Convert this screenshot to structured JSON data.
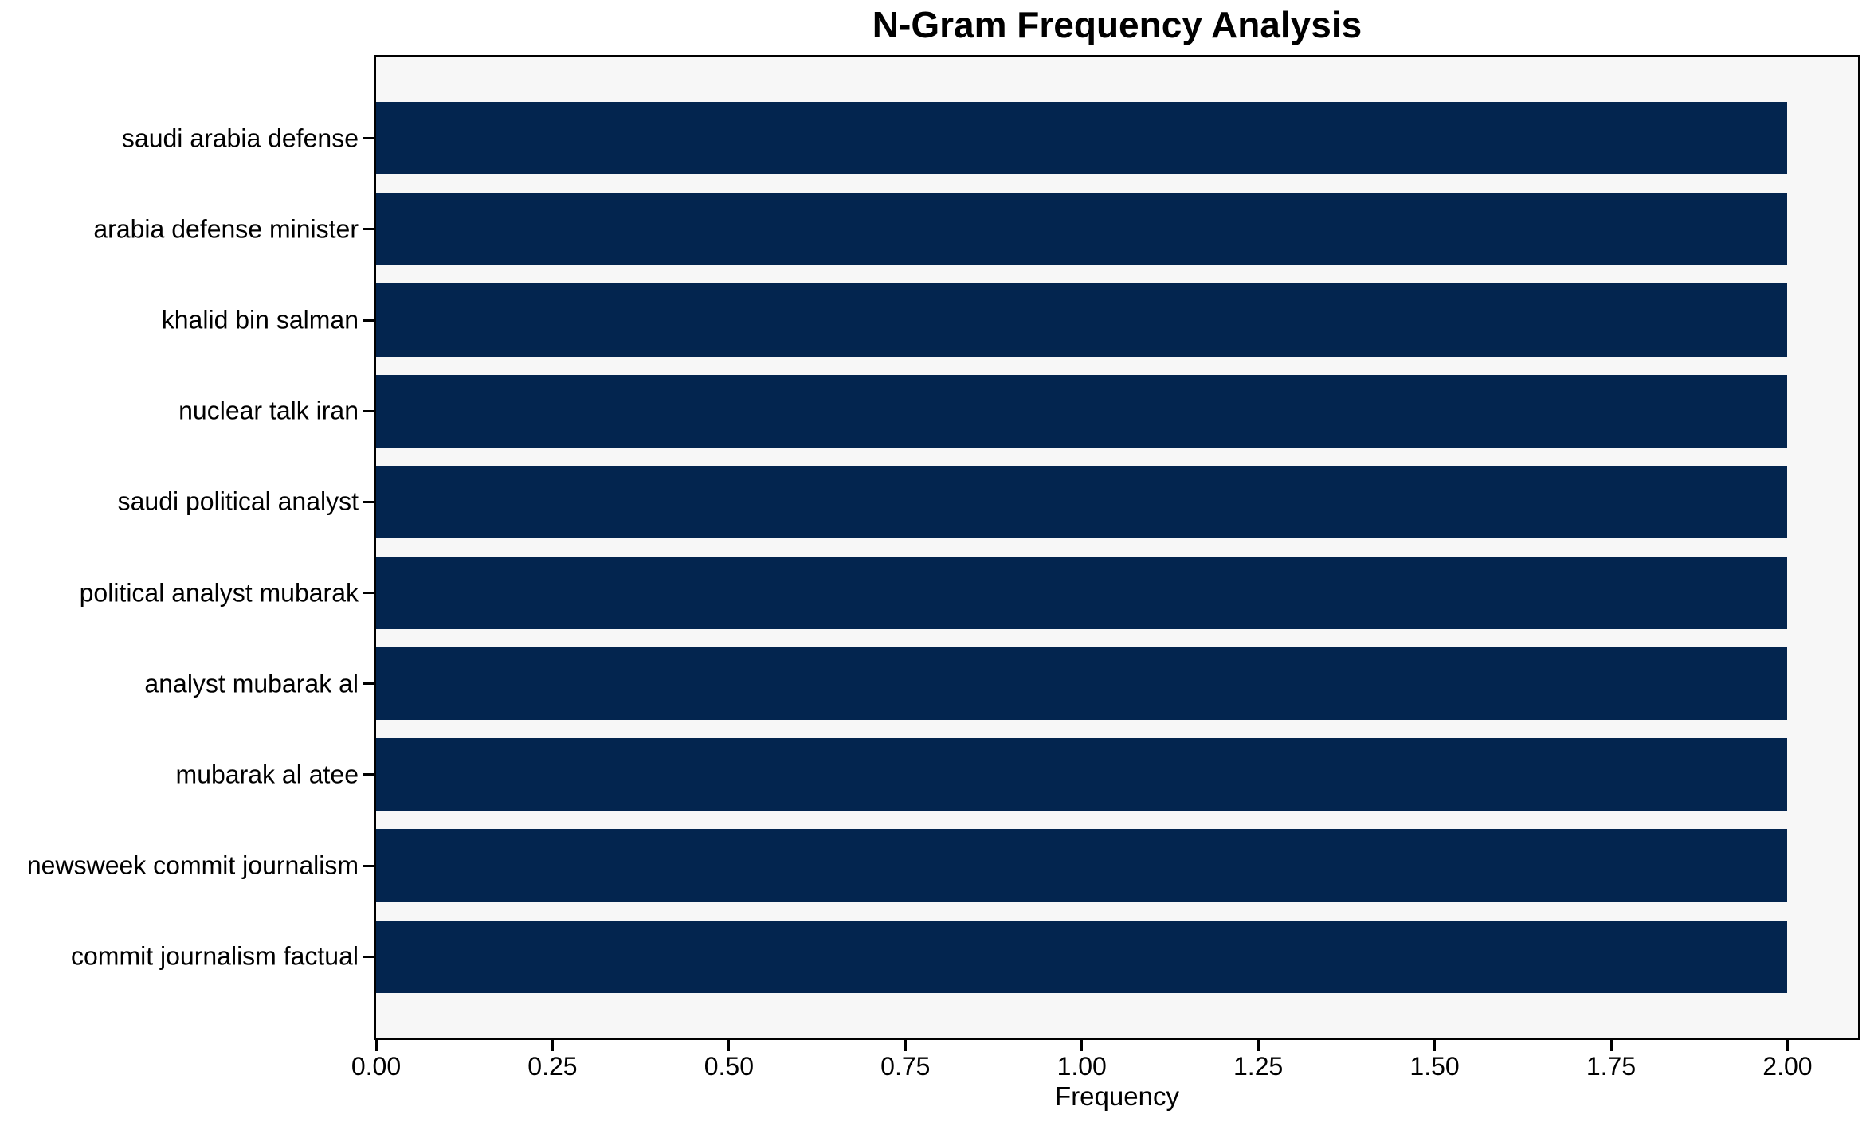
{
  "chart_data": {
    "type": "bar",
    "orientation": "horizontal",
    "title": "N-Gram Frequency Analysis",
    "xlabel": "Frequency",
    "ylabel": "",
    "categories": [
      "saudi arabia defense",
      "arabia defense minister",
      "khalid bin salman",
      "nuclear talk iran",
      "saudi political analyst",
      "political analyst mubarak",
      "analyst mubarak al",
      "mubarak al atee",
      "newsweek commit journalism",
      "commit journalism factual"
    ],
    "values": [
      2,
      2,
      2,
      2,
      2,
      2,
      2,
      2,
      2,
      2
    ],
    "xlim": [
      0,
      2.1
    ],
    "xtick_values": [
      0,
      0.25,
      0.5,
      0.75,
      1.0,
      1.25,
      1.5,
      1.75,
      2.0
    ],
    "xtick_labels": [
      "0.00",
      "0.25",
      "0.50",
      "0.75",
      "1.00",
      "1.25",
      "1.50",
      "1.75",
      "2.00"
    ],
    "bar_color": "#03254f",
    "plot_bg": "#f7f7f7",
    "grid": false,
    "legend": "none"
  }
}
